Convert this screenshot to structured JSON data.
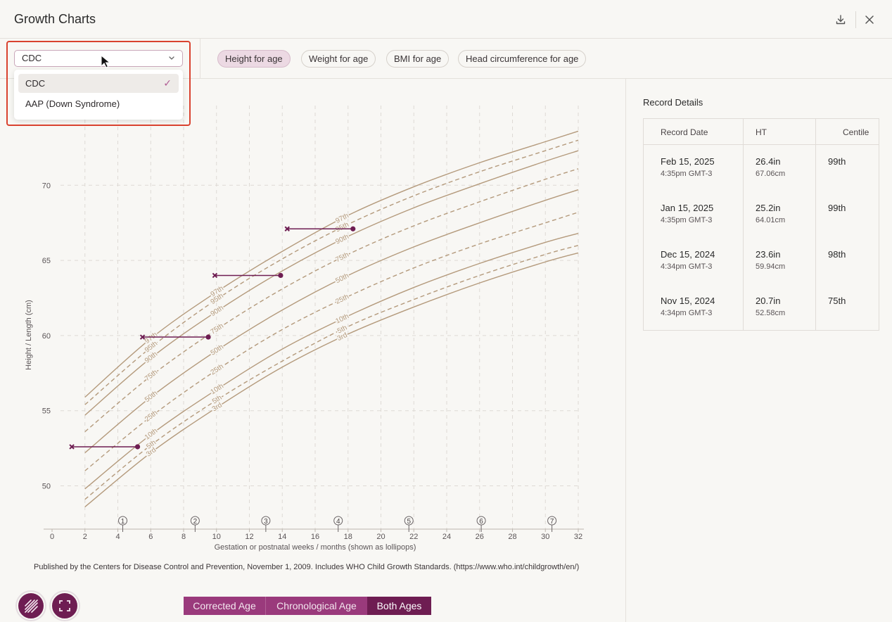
{
  "header": {
    "title": "Growth Charts",
    "download_icon": "download-icon",
    "close_icon": "close-icon"
  },
  "select": {
    "value": "CDC",
    "options": [
      {
        "label": "CDC",
        "selected": true
      },
      {
        "label": "AAP (Down Syndrome)",
        "selected": false
      }
    ]
  },
  "tabs": [
    {
      "label": "Height for age",
      "active": true
    },
    {
      "label": "Weight for age",
      "active": false
    },
    {
      "label": "BMI for age",
      "active": false
    },
    {
      "label": "Head circumference for age",
      "active": false
    }
  ],
  "chart": {
    "ylabel": "Height / Length (cm)",
    "xlabel": "Gestation or postnatal weeks / months (shown as lollipops)",
    "y_ticks": [
      "50",
      "55",
      "60",
      "65",
      "70"
    ],
    "x_ticks": [
      "0",
      "2",
      "4",
      "6",
      "8",
      "10",
      "12",
      "14",
      "16",
      "18",
      "20",
      "22",
      "24",
      "26",
      "28",
      "30",
      "32"
    ],
    "month_markers": [
      "1",
      "2",
      "3",
      "4",
      "5",
      "6",
      "7"
    ],
    "centile_labels": [
      "97th",
      "95th",
      "90th",
      "75th",
      "50th",
      "25th",
      "10th",
      "5th",
      "3rd"
    ],
    "colors": {
      "accent": "#6e1d52",
      "centile_line": "#b49a7c",
      "grid": "#dedad5"
    }
  },
  "chart_data": {
    "type": "line",
    "xlabel": "Gestation or postnatal weeks / months (shown as lollipops)",
    "ylabel": "Height / Length (cm)",
    "xlim": [
      0,
      32
    ],
    "ylim": [
      47,
      73
    ],
    "y_ticks": [
      50,
      55,
      60,
      65,
      70
    ],
    "series": [
      {
        "name": "97th",
        "dashed": false,
        "x": [
          2,
          6,
          10,
          14,
          18,
          22,
          26,
          30,
          32
        ],
        "y": [
          55.9,
          59.8,
          62.9,
          65.6,
          68.0,
          69.9,
          71.5,
          72.9,
          73.6
        ]
      },
      {
        "name": "95th",
        "dashed": true,
        "x": [
          2,
          6,
          10,
          14,
          18,
          22,
          26,
          30,
          32
        ],
        "y": [
          55.4,
          59.2,
          62.4,
          65.1,
          67.4,
          69.3,
          70.9,
          72.3,
          73.0
        ]
      },
      {
        "name": "90th",
        "dashed": false,
        "x": [
          2,
          6,
          10,
          14,
          18,
          22,
          26,
          30,
          32
        ],
        "y": [
          54.7,
          58.5,
          61.6,
          64.3,
          66.6,
          68.5,
          70.1,
          71.6,
          72.3
        ]
      },
      {
        "name": "75th",
        "dashed": true,
        "x": [
          2,
          6,
          10,
          14,
          18,
          22,
          26,
          30,
          32
        ],
        "y": [
          53.6,
          57.3,
          60.4,
          63.1,
          65.4,
          67.3,
          68.9,
          70.4,
          71.1
        ]
      },
      {
        "name": "50th",
        "dashed": false,
        "x": [
          2,
          6,
          10,
          14,
          18,
          22,
          26,
          30,
          32
        ],
        "y": [
          52.2,
          55.9,
          59.0,
          61.7,
          64.0,
          65.9,
          67.5,
          69.0,
          69.7
        ]
      },
      {
        "name": "25th",
        "dashed": true,
        "x": [
          2,
          6,
          10,
          14,
          18,
          22,
          26,
          30,
          32
        ],
        "y": [
          51.0,
          54.6,
          57.7,
          60.4,
          62.6,
          64.5,
          66.1,
          67.5,
          68.2
        ]
      },
      {
        "name": "10th",
        "dashed": false,
        "x": [
          2,
          6,
          10,
          14,
          18,
          22,
          26,
          30,
          32
        ],
        "y": [
          49.8,
          53.4,
          56.4,
          59.1,
          61.3,
          63.2,
          64.8,
          66.2,
          66.8
        ]
      },
      {
        "name": "5th",
        "dashed": true,
        "x": [
          2,
          6,
          10,
          14,
          18,
          22,
          26,
          30,
          32
        ],
        "y": [
          49.1,
          52.7,
          55.7,
          58.3,
          60.6,
          62.4,
          64.0,
          65.4,
          66.0
        ]
      },
      {
        "name": "3rd",
        "dashed": false,
        "x": [
          2,
          6,
          10,
          14,
          18,
          22,
          26,
          30,
          32
        ],
        "y": [
          48.6,
          52.2,
          55.2,
          57.9,
          60.1,
          61.9,
          63.5,
          64.9,
          65.5
        ]
      }
    ],
    "measurements": [
      {
        "corrected_x": 1.2,
        "chronological_x": 5.2,
        "y": 52.6
      },
      {
        "corrected_x": 5.5,
        "chronological_x": 9.5,
        "y": 59.9
      },
      {
        "corrected_x": 9.9,
        "chronological_x": 13.9,
        "y": 64.0
      },
      {
        "corrected_x": 14.3,
        "chronological_x": 18.3,
        "y": 67.1
      }
    ],
    "month_markers": [
      {
        "label": "1",
        "x": 4.3
      },
      {
        "label": "2",
        "x": 8.7
      },
      {
        "label": "3",
        "x": 13.0
      },
      {
        "label": "4",
        "x": 17.4
      },
      {
        "label": "5",
        "x": 21.7
      },
      {
        "label": "6",
        "x": 26.1
      },
      {
        "label": "7",
        "x": 30.4
      }
    ]
  },
  "details": {
    "title": "Record Details",
    "headers": [
      "Record Date",
      "HT",
      "Centile"
    ],
    "rows": [
      {
        "date": "Feb 15, 2025",
        "time": "4:35pm GMT-3",
        "ht_in": "26.4in",
        "ht_cm": "67.06cm",
        "centile": "99th"
      },
      {
        "date": "Jan 15, 2025",
        "time": "4:35pm GMT-3",
        "ht_in": "25.2in",
        "ht_cm": "64.01cm",
        "centile": "99th"
      },
      {
        "date": "Dec 15, 2024",
        "time": "4:34pm GMT-3",
        "ht_in": "23.6in",
        "ht_cm": "59.94cm",
        "centile": "98th"
      },
      {
        "date": "Nov 15, 2024",
        "time": "4:34pm GMT-3",
        "ht_in": "20.7in",
        "ht_cm": "52.58cm",
        "centile": "75th"
      }
    ]
  },
  "citation": "Published by the Centers for Disease Control and Prevention, November 1, 2009. Includes WHO Child Growth Standards. (https://www.who.int/childgrowth/en/)",
  "age_toggle": {
    "options": [
      "Corrected Age",
      "Chronological Age",
      "Both Ages"
    ],
    "active": "Both Ages"
  },
  "fabs": {
    "pattern_icon": "hatch-pattern-icon",
    "fullscreen_icon": "fullscreen-icon"
  }
}
